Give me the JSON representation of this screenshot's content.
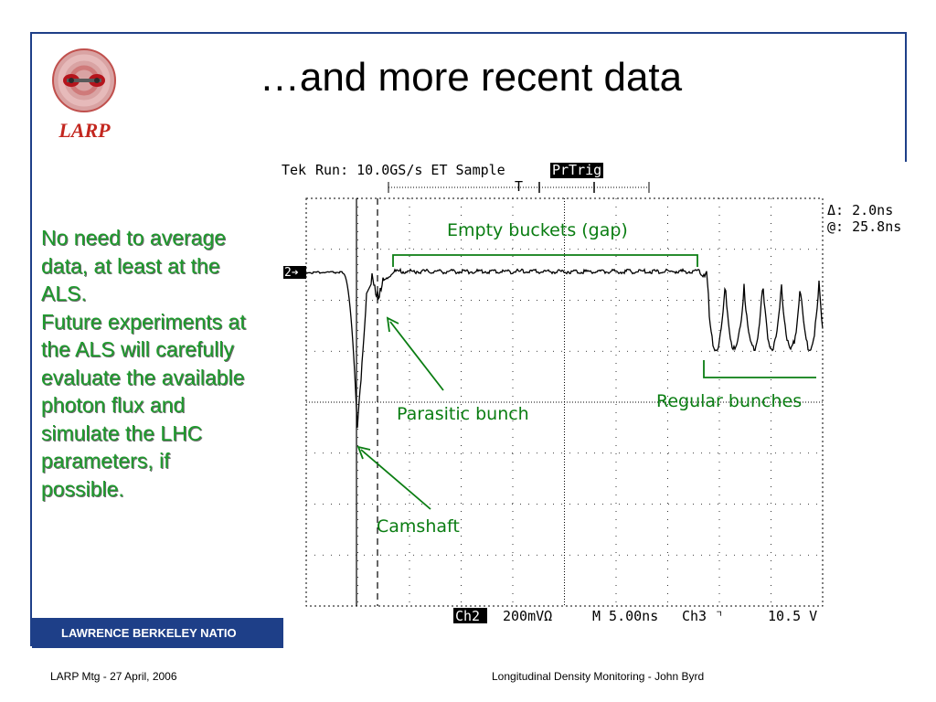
{
  "slide": {
    "title": "…and more recent data",
    "logo_text": "LARP",
    "body_lines": [
      "No need to average",
      "data, at least at the",
      "ALS.",
      "Future experiments at",
      "the ALS will carefully",
      "evaluate the available",
      "photon flux and",
      "simulate the LHC",
      "parameters, if",
      "possible."
    ],
    "footer_bar_text": "LAWRENCE BERKELEY NATIO",
    "footer_left": "LARP Mtg  -  27 April, 2006",
    "footer_right": "Longitudinal Density Monitoring  -  John Byrd"
  },
  "scope": {
    "header_brand": "Tek",
    "header_run": "Run: 10.0GS/s ET Sample",
    "header_badge": "PrTrig",
    "trigger_marker": "T",
    "channel_marker": "2➔",
    "cursor_delta": "Δ: 2.0ns",
    "cursor_at": "@: 25.8ns",
    "bottom_channel": "Ch2",
    "bottom_volts": "200mVΩ",
    "bottom_time": "M 5.00ns",
    "bottom_trigger": "Ch3 ⌝",
    "bottom_level": "10.5 V",
    "annotations": {
      "empty_buckets": "Empty buckets (gap)",
      "regular_bunches": "Regular bunches",
      "parasitic_bunch": "Parasitic bunch",
      "camshaft": "Camshaft"
    }
  },
  "colors": {
    "frame": "#1e3f88",
    "body_text": "#1d9a2c",
    "annotation": "#0a7d12",
    "logo_red": "#c3271f"
  }
}
